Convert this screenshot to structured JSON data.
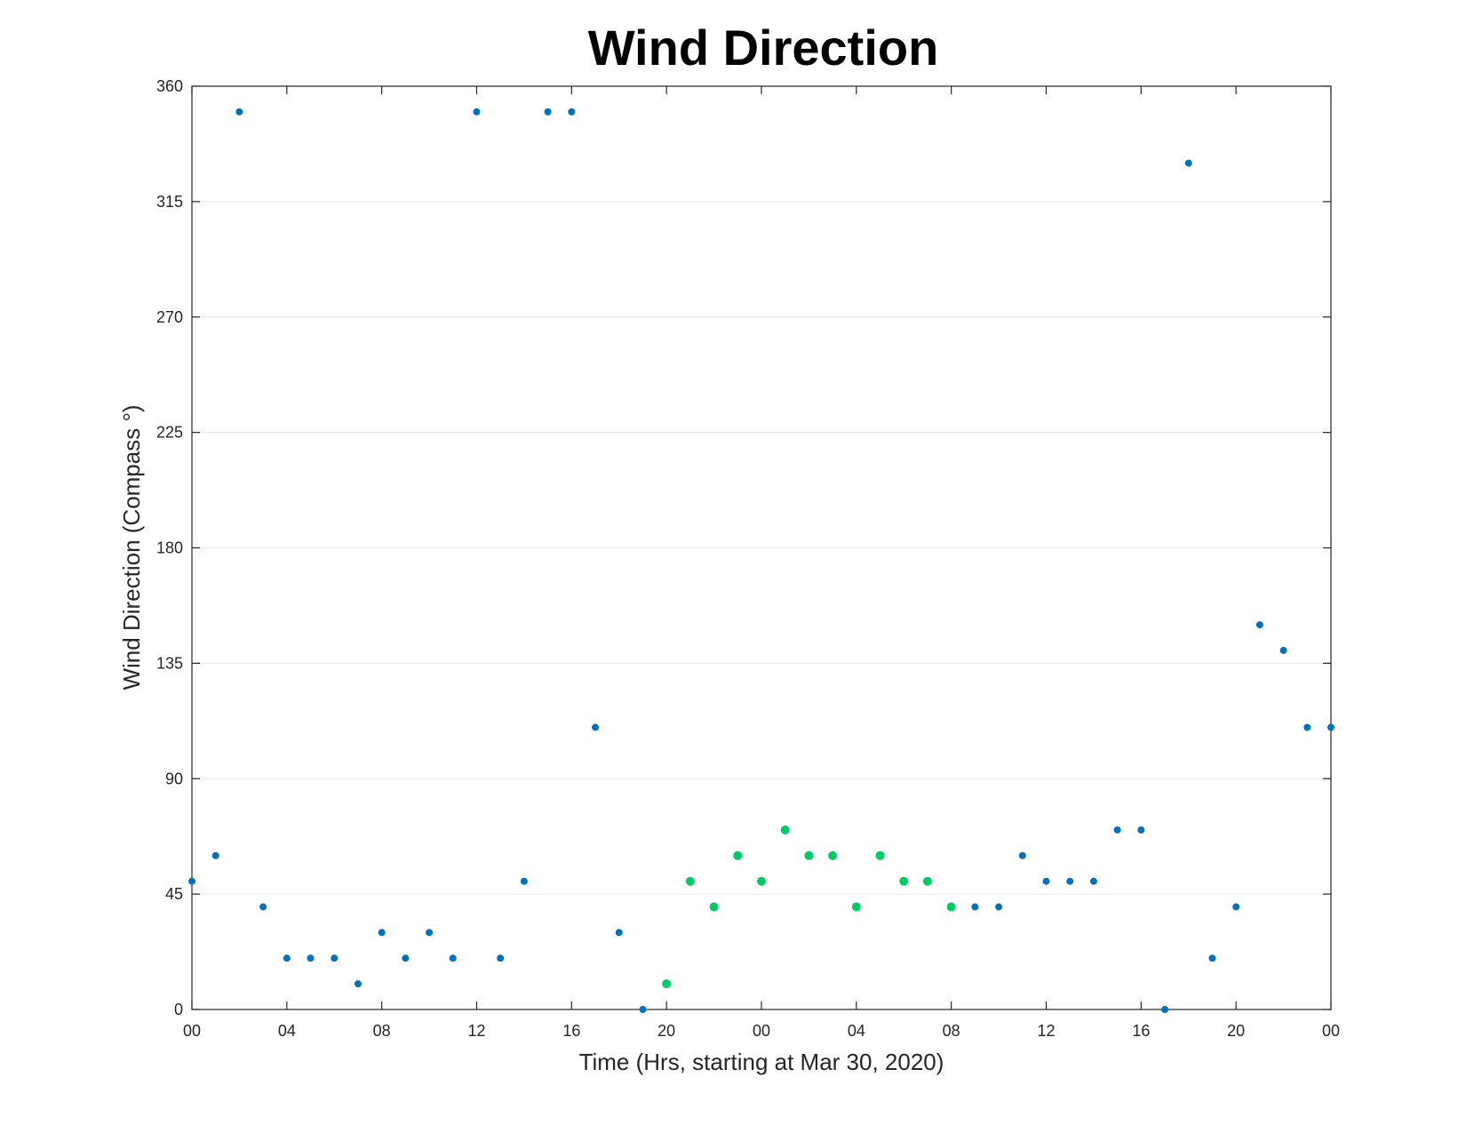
{
  "chart_data": {
    "type": "scatter",
    "title": "Wind Direction",
    "xlabel": "Time (Hrs, starting at Mar 30, 2020)",
    "ylabel": "Wind Direction (Compass °)",
    "xlim": [
      0,
      48
    ],
    "ylim": [
      0,
      360
    ],
    "xticks": [
      0,
      4,
      8,
      12,
      16,
      20,
      24,
      28,
      32,
      36,
      40,
      44,
      48
    ],
    "xtick_labels": [
      "00",
      "04",
      "08",
      "12",
      "16",
      "20",
      "00",
      "04",
      "08",
      "12",
      "16",
      "20",
      "00"
    ],
    "yticks": [
      0,
      45,
      90,
      135,
      180,
      225,
      270,
      315,
      360
    ],
    "ytick_labels": [
      "0",
      "45",
      "90",
      "135",
      "180",
      "225",
      "270",
      "315",
      "360"
    ],
    "grid": "horizontal",
    "series": [
      {
        "color": "#0072BD",
        "x": [
          0,
          1,
          2,
          3,
          4,
          5,
          6,
          7,
          8,
          9,
          10,
          11,
          12,
          13,
          14,
          15,
          16,
          17,
          18,
          19,
          33,
          34,
          35,
          36,
          37,
          38,
          39,
          40,
          41,
          42,
          43,
          44,
          45,
          46,
          47,
          48
        ],
        "y": [
          50,
          60,
          350,
          40,
          20,
          20,
          20,
          10,
          30,
          20,
          30,
          20,
          350,
          20,
          50,
          350,
          350,
          110,
          30,
          0,
          40,
          40,
          60,
          50,
          50,
          50,
          70,
          70,
          0,
          330,
          20,
          40,
          150,
          140,
          110,
          110
        ]
      },
      {
        "color": "#00CC66",
        "x": [
          20,
          21,
          22,
          23,
          24,
          25,
          26,
          27,
          28,
          29,
          30,
          31,
          32
        ],
        "y": [
          10,
          50,
          40,
          60,
          50,
          70,
          60,
          60,
          40,
          60,
          50,
          50,
          40
        ]
      }
    ]
  }
}
